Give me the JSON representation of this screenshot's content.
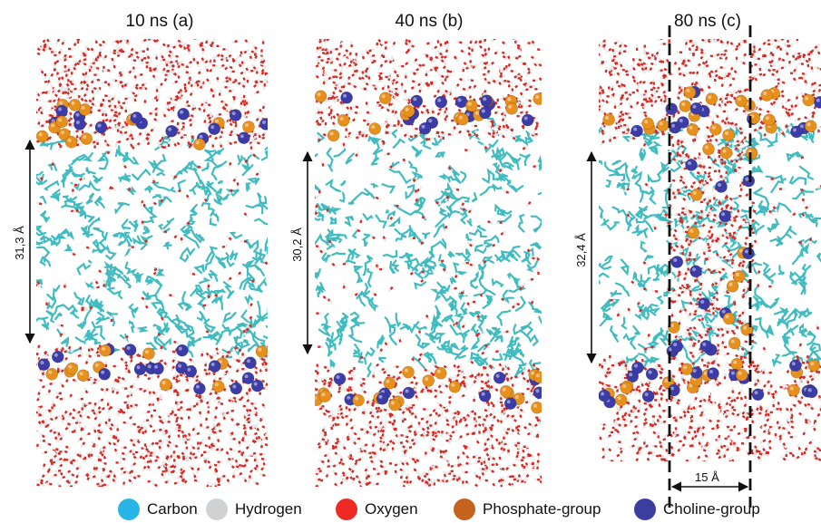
{
  "panels": [
    {
      "title": "10 ns (a)",
      "thickness_label": "31,3 Å"
    },
    {
      "title": "40 ns (b)",
      "thickness_label": "30,2 Å"
    },
    {
      "title": "80 ns (c)",
      "thickness_label": "32,4 Å",
      "width_label": "15 Å"
    }
  ],
  "legend": [
    {
      "label": "Carbon",
      "color": "#29b6e6"
    },
    {
      "label": "Hydrogen",
      "color": "#cfd1d3"
    },
    {
      "label": "Oxygen",
      "color": "#ee2a24"
    },
    {
      "label": "Phosphate-group",
      "color": "#c4621e"
    },
    {
      "label": "Choline-group",
      "color": "#3d3d9f"
    }
  ],
  "colors": {
    "water_oxygen": "#d62a24",
    "water_hydrogen": "#e8e8e8",
    "lipid_tail": "#40bcc0",
    "phosphate": "#e8901c",
    "choline": "#3c3ca8"
  }
}
